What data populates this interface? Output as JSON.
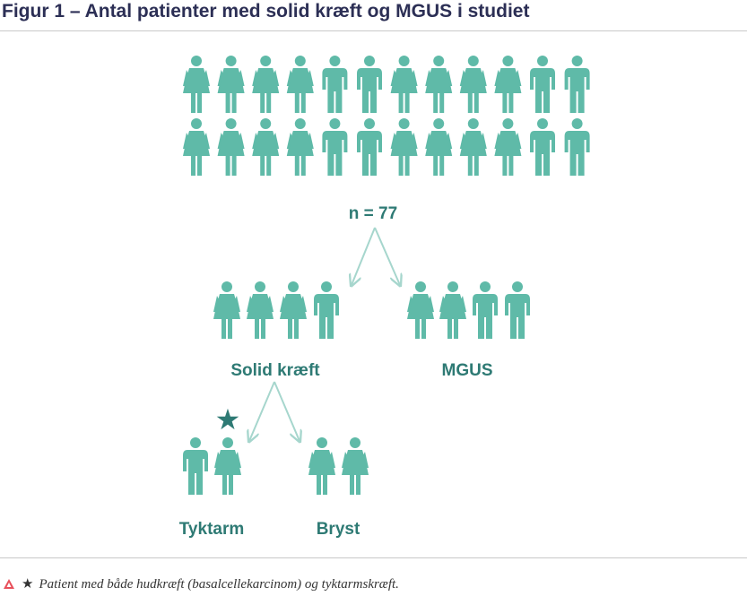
{
  "title": "Figur 1 – Antal patienter med solid kræft og MGUS i studiet",
  "colors": {
    "figure": "#5fbaa8",
    "arrow": "#a6d6cd",
    "label": "#2e7a74",
    "star": "#2e7a74",
    "title": "#2c2f55",
    "accent_triangle": "#e8505b"
  },
  "diagram": {
    "total_label": "n = 77",
    "groups": [
      {
        "id": "solid",
        "label": "Solid kræft",
        "figures": [
          "female",
          "female",
          "female",
          "male"
        ]
      },
      {
        "id": "mgus",
        "label": "MGUS",
        "figures": [
          "female",
          "female",
          "male",
          "male"
        ]
      }
    ],
    "subgroups": [
      {
        "id": "tyktarm",
        "label": "Tyktarm",
        "figures": [
          "male",
          "female"
        ],
        "starred_figure_index": 1
      },
      {
        "id": "bryst",
        "label": "Bryst",
        "figures": [
          "female",
          "female"
        ]
      }
    ],
    "top_rows": [
      [
        "female",
        "female",
        "female",
        "female",
        "male",
        "male",
        "female",
        "female",
        "female",
        "female",
        "male",
        "male"
      ],
      [
        "female",
        "female",
        "female",
        "female",
        "male",
        "male",
        "female",
        "female",
        "female",
        "female",
        "male",
        "male"
      ]
    ]
  },
  "footnote": {
    "star": "★",
    "text": "Patient med både hudkræft (basalcellekarcinom) og tyktarmskræft."
  }
}
